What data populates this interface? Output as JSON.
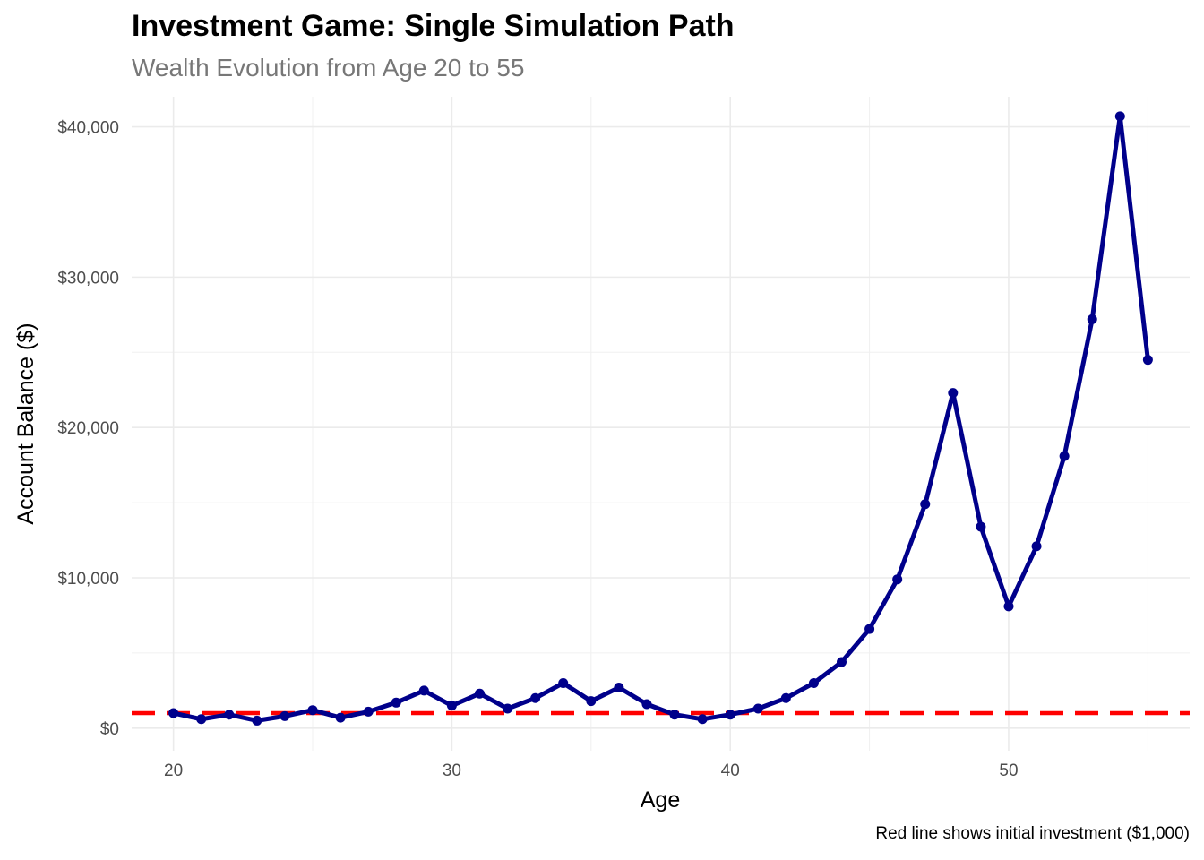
{
  "chart_data": {
    "type": "line",
    "title": "Investment Game: Single Simulation Path",
    "subtitle": "Wealth Evolution from Age 20 to 55",
    "xlabel": "Age",
    "ylabel": "Account Balance ($)",
    "caption": "Red line shows initial investment ($1,000)",
    "xlim": [
      18.5,
      56.5
    ],
    "ylim": [
      -1500,
      42000
    ],
    "x_ticks": [
      20,
      30,
      40,
      50
    ],
    "y_ticks": [
      0,
      10000,
      20000,
      30000,
      40000
    ],
    "y_tick_labels": [
      "$0",
      "$10,000",
      "$20,000",
      "$30,000",
      "$40,000"
    ],
    "grid": true,
    "series": [
      {
        "color": "#00008B",
        "x": [
          20,
          21,
          22,
          23,
          24,
          25,
          26,
          27,
          28,
          29,
          30,
          31,
          32,
          33,
          34,
          35,
          36,
          37,
          38,
          39,
          40,
          41,
          42,
          43,
          44,
          45,
          46,
          47,
          48,
          49,
          50,
          51,
          52,
          53,
          54,
          55
        ],
        "y": [
          1000,
          600,
          900,
          500,
          800,
          1200,
          700,
          1100,
          1700,
          2500,
          1500,
          2300,
          1300,
          2000,
          3000,
          1800,
          2700,
          1600,
          900,
          600,
          900,
          1300,
          2000,
          3000,
          4400,
          6600,
          9900,
          14900,
          22300,
          13400,
          8100,
          12100,
          18100,
          27200,
          40700,
          24500
        ]
      }
    ],
    "reference_line": {
      "y": 1000,
      "color": "#FF0000",
      "style": "dashed"
    }
  }
}
